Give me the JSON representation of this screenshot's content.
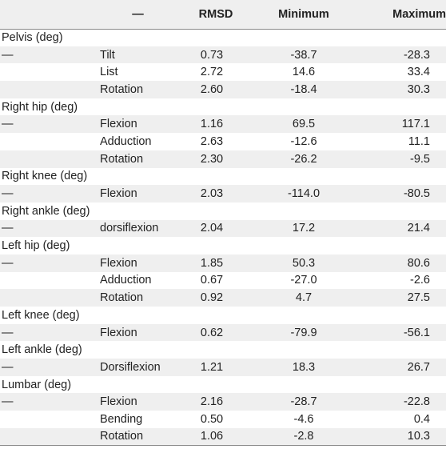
{
  "table": {
    "headers": {
      "col1": "",
      "col2": "—",
      "rmsd": "RMSD",
      "minimum": "Minimum",
      "maximum": "Maximum"
    },
    "rows": [
      {
        "kind": "group",
        "label": "Pelvis (deg)"
      },
      {
        "kind": "data",
        "group_marker": "—",
        "measure": "Tilt",
        "rmsd": "0.73",
        "min": "-38.7",
        "max": "-28.3"
      },
      {
        "kind": "data",
        "group_marker": "",
        "measure": "List",
        "rmsd": "2.72",
        "min": "14.6",
        "max": "33.4"
      },
      {
        "kind": "data",
        "group_marker": "",
        "measure": "Rotation",
        "rmsd": "2.60",
        "min": "-18.4",
        "max": "30.3"
      },
      {
        "kind": "group",
        "label": "Right hip (deg)"
      },
      {
        "kind": "data",
        "group_marker": "—",
        "measure": "Flexion",
        "rmsd": "1.16",
        "min": "69.5",
        "max": "117.1"
      },
      {
        "kind": "data",
        "group_marker": "",
        "measure": "Adduction",
        "rmsd": "2.63",
        "min": "-12.6",
        "max": "11.1"
      },
      {
        "kind": "data",
        "group_marker": "",
        "measure": "Rotation",
        "rmsd": "2.30",
        "min": "-26.2",
        "max": "-9.5"
      },
      {
        "kind": "group",
        "label": "Right knee (deg)"
      },
      {
        "kind": "data",
        "group_marker": "—",
        "measure": "Flexion",
        "rmsd": "2.03",
        "min": "-114.0",
        "max": "-80.5"
      },
      {
        "kind": "group",
        "label": "Right ankle (deg)"
      },
      {
        "kind": "data",
        "group_marker": "—",
        "measure": "dorsiflexion",
        "rmsd": "2.04",
        "min": "17.2",
        "max": "21.4"
      },
      {
        "kind": "group",
        "label": "Left hip (deg)"
      },
      {
        "kind": "data",
        "group_marker": "—",
        "measure": "Flexion",
        "rmsd": "1.85",
        "min": "50.3",
        "max": "80.6"
      },
      {
        "kind": "data",
        "group_marker": "",
        "measure": "Adduction",
        "rmsd": "0.67",
        "min": "-27.0",
        "max": "-2.6"
      },
      {
        "kind": "data",
        "group_marker": "",
        "measure": "Rotation",
        "rmsd": "0.92",
        "min": "4.7",
        "max": "27.5"
      },
      {
        "kind": "group",
        "label": "Left knee (deg)"
      },
      {
        "kind": "data",
        "group_marker": "—",
        "measure": "Flexion",
        "rmsd": "0.62",
        "min": "-79.9",
        "max": "-56.1"
      },
      {
        "kind": "group",
        "label": "Left ankle (deg)"
      },
      {
        "kind": "data",
        "group_marker": "—",
        "measure": "Dorsiflexion",
        "rmsd": "1.21",
        "min": "18.3",
        "max": "26.7"
      },
      {
        "kind": "group",
        "label": "Lumbar (deg)"
      },
      {
        "kind": "data",
        "group_marker": "—",
        "measure": "Flexion",
        "rmsd": "2.16",
        "min": "-28.7",
        "max": "-22.8"
      },
      {
        "kind": "data",
        "group_marker": "",
        "measure": "Bending",
        "rmsd": "0.50",
        "min": "-4.6",
        "max": "0.4"
      },
      {
        "kind": "data",
        "group_marker": "",
        "measure": "Rotation",
        "rmsd": "1.06",
        "min": "-2.8",
        "max": "10.3"
      }
    ]
  },
  "colors": {
    "row_shade": "#efefef",
    "rule": "#8a8a8a",
    "text": "#222222"
  }
}
